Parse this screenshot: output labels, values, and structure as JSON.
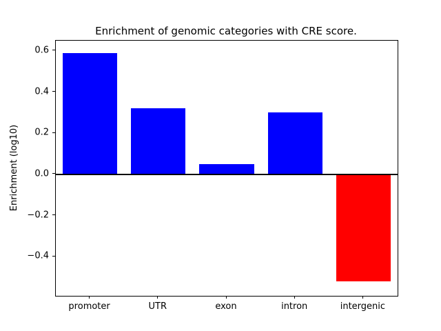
{
  "chart_data": {
    "type": "bar",
    "title": "Enrichment of genomic categories with CRE score.",
    "ylabel": "Enrichment (log10)",
    "xlabel": "",
    "categories": [
      "promoter",
      "UTR",
      "exon",
      "intron",
      "intergenic"
    ],
    "values": [
      0.59,
      0.32,
      0.05,
      0.3,
      -0.52
    ],
    "bar_colors": [
      "#0000ff",
      "#0000ff",
      "#0000ff",
      "#0000ff",
      "#ff0000"
    ],
    "ylim": [
      -0.59,
      0.65
    ],
    "yticks": [
      {
        "value": -0.4,
        "label": "−0.4"
      },
      {
        "value": -0.2,
        "label": "−0.2"
      },
      {
        "value": 0.0,
        "label": "0.0"
      },
      {
        "value": 0.2,
        "label": "0.2"
      },
      {
        "value": 0.4,
        "label": "0.4"
      },
      {
        "value": 0.6,
        "label": "0.6"
      }
    ],
    "zero_line": true,
    "grid": false,
    "legend": null,
    "bar_width_fraction": 0.8
  }
}
